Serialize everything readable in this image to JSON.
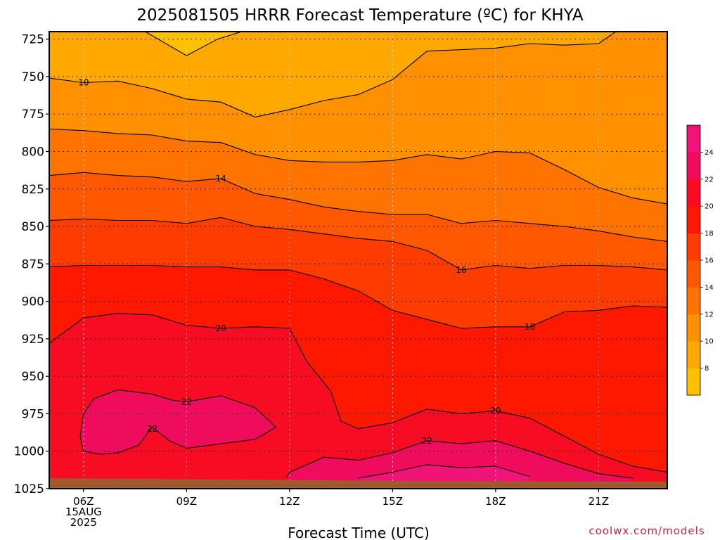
{
  "title": "2025081505 HRRR Forecast Temperature (ºC) for KHYA",
  "xlabel": "Forecast Time (UTC)",
  "credit": "coolwx.com/models",
  "chart_data": {
    "type": "contour",
    "title": "2025081505 HRRR Forecast Temperature (ºC) for KHYA",
    "xlabel": "Forecast Time (UTC)",
    "ylabel": "",
    "x_ticks": [
      {
        "hour": 6,
        "label": "06Z",
        "date": "15AUG",
        "year": "2025"
      },
      {
        "hour": 9,
        "label": "09Z"
      },
      {
        "hour": 12,
        "label": "12Z"
      },
      {
        "hour": 15,
        "label": "15Z"
      },
      {
        "hour": 18,
        "label": "18Z"
      },
      {
        "hour": 21,
        "label": "21Z"
      }
    ],
    "xlim": [
      5.0,
      23.0
    ],
    "y_ticks": [
      725,
      750,
      775,
      800,
      825,
      850,
      875,
      900,
      925,
      950,
      975,
      1000,
      1025
    ],
    "ylim": [
      1025,
      720
    ],
    "grid": true,
    "colorbar": {
      "ticks": [
        8,
        10,
        12,
        14,
        16,
        18,
        20,
        22,
        24
      ],
      "levels": [
        6,
        8,
        10,
        12,
        14,
        16,
        18,
        20,
        22,
        24,
        26
      ],
      "colors": [
        "#ffc000",
        "#ffa800",
        "#ff9000",
        "#ff7400",
        "#ff5800",
        "#ff3c00",
        "#ff1800",
        "#f80c24",
        "#f00c5c",
        "#f01478"
      ]
    },
    "ground": {
      "color": "#a05a2c",
      "surface_hpa": 1018
    },
    "contours": [
      {
        "level": 8,
        "label_at": null,
        "points": [
          [
            7.8,
            720
          ],
          [
            9.0,
            736
          ],
          [
            9.9,
            725
          ],
          [
            10.6,
            720
          ]
        ]
      },
      {
        "level": 10,
        "label_at": [
          6.0,
          754
        ],
        "points": [
          [
            5.0,
            751
          ],
          [
            6.0,
            754
          ],
          [
            7.0,
            753
          ],
          [
            8.0,
            758
          ],
          [
            9.0,
            765
          ],
          [
            10.0,
            767
          ],
          [
            11.0,
            777
          ],
          [
            12.0,
            772
          ],
          [
            13.0,
            766
          ],
          [
            14.0,
            762
          ],
          [
            15.0,
            752
          ],
          [
            16.0,
            733
          ],
          [
            17.0,
            732
          ],
          [
            18.0,
            731
          ],
          [
            19.0,
            728
          ],
          [
            20.0,
            729
          ],
          [
            21.0,
            728
          ],
          [
            21.5,
            720
          ]
        ]
      },
      {
        "level": 12,
        "label_at": null,
        "points": [
          [
            5.0,
            785
          ],
          [
            6.0,
            786
          ],
          [
            7.0,
            788
          ],
          [
            8.0,
            789
          ],
          [
            9.0,
            793
          ],
          [
            10.0,
            794
          ],
          [
            11.0,
            802
          ],
          [
            12.0,
            806
          ],
          [
            13.0,
            807
          ],
          [
            14.0,
            807
          ],
          [
            15.0,
            806
          ],
          [
            16.0,
            802
          ],
          [
            17.0,
            805
          ],
          [
            18.0,
            800
          ],
          [
            19.0,
            801
          ],
          [
            20.0,
            812
          ],
          [
            21.0,
            824
          ],
          [
            22.0,
            831
          ],
          [
            23.0,
            835
          ]
        ]
      },
      {
        "level": 14,
        "label_at": [
          10.0,
          818
        ],
        "points": [
          [
            5.0,
            816
          ],
          [
            6.0,
            814
          ],
          [
            7.0,
            816
          ],
          [
            8.0,
            817
          ],
          [
            9.0,
            820
          ],
          [
            10.0,
            818
          ],
          [
            11.0,
            828
          ],
          [
            12.0,
            832
          ],
          [
            13.0,
            837
          ],
          [
            14.0,
            840
          ],
          [
            15.0,
            842
          ],
          [
            16.0,
            842
          ],
          [
            17.0,
            848
          ],
          [
            18.0,
            846
          ],
          [
            19.0,
            848
          ],
          [
            20.0,
            850
          ],
          [
            21.0,
            853
          ],
          [
            22.0,
            857
          ],
          [
            23.0,
            860
          ]
        ]
      },
      {
        "level": 16,
        "label_at": [
          17.0,
          879
        ],
        "points": [
          [
            5.0,
            846
          ],
          [
            6.0,
            845
          ],
          [
            7.0,
            846
          ],
          [
            8.0,
            846
          ],
          [
            9.0,
            848
          ],
          [
            10.0,
            844
          ],
          [
            11.0,
            850
          ],
          [
            12.0,
            852
          ],
          [
            13.0,
            855
          ],
          [
            14.0,
            858
          ],
          [
            15.0,
            860
          ],
          [
            16.0,
            866
          ],
          [
            17.0,
            879
          ],
          [
            18.0,
            876
          ],
          [
            19.0,
            878
          ],
          [
            20.0,
            876
          ],
          [
            21.0,
            876
          ],
          [
            22.0,
            877
          ],
          [
            23.0,
            879
          ]
        ]
      },
      {
        "level": 18,
        "label_at": [
          19.0,
          917
        ],
        "points": [
          [
            5.0,
            877
          ],
          [
            6.0,
            876
          ],
          [
            7.0,
            876
          ],
          [
            8.0,
            876
          ],
          [
            9.0,
            877
          ],
          [
            10.0,
            877
          ],
          [
            11.0,
            879
          ],
          [
            12.0,
            879
          ],
          [
            13.0,
            885
          ],
          [
            14.0,
            893
          ],
          [
            15.0,
            906
          ],
          [
            16.0,
            912
          ],
          [
            17.0,
            918
          ],
          [
            18.0,
            917
          ],
          [
            19.0,
            917
          ],
          [
            20.0,
            907
          ],
          [
            21.0,
            906
          ],
          [
            22.0,
            903
          ],
          [
            23.0,
            904
          ]
        ]
      },
      {
        "level": 20,
        "label_at": [
          10.0,
          918
        ],
        "points": [
          [
            5.0,
            928
          ],
          [
            6.0,
            911
          ],
          [
            7.0,
            908
          ],
          [
            8.0,
            909
          ],
          [
            9.0,
            916
          ],
          [
            10.0,
            918
          ],
          [
            11.0,
            917
          ],
          [
            12.0,
            918
          ],
          [
            12.5,
            940
          ],
          [
            13.2,
            960
          ],
          [
            13.5,
            980
          ],
          [
            14.0,
            985
          ],
          [
            15.0,
            981
          ],
          [
            16.0,
            972
          ],
          [
            17.0,
            975
          ],
          [
            18.0,
            973
          ],
          [
            19.0,
            978
          ],
          [
            20.0,
            990
          ],
          [
            21.0,
            1002
          ],
          [
            22.0,
            1010
          ],
          [
            23.0,
            1014
          ]
        ]
      },
      {
        "level": 22,
        "label_at": [
          9.0,
          967
        ],
        "closed": true,
        "points": [
          [
            6.0,
            975
          ],
          [
            6.3,
            965
          ],
          [
            7.0,
            959
          ],
          [
            8.0,
            962
          ],
          [
            8.6,
            966
          ],
          [
            9.0,
            967
          ],
          [
            10.0,
            963
          ],
          [
            11.0,
            971
          ],
          [
            11.6,
            984
          ],
          [
            11.0,
            992
          ],
          [
            10.0,
            995
          ],
          [
            9.0,
            998
          ],
          [
            8.5,
            993
          ],
          [
            8.0,
            984
          ],
          [
            7.6,
            996
          ],
          [
            7.0,
            1001
          ],
          [
            6.5,
            1002
          ],
          [
            6.0,
            1000
          ],
          [
            5.9,
            990
          ]
        ]
      },
      {
        "level": 22,
        "label_at": [
          16.0,
          993
        ],
        "points": [
          [
            11.9,
            1018
          ],
          [
            12.0,
            1014
          ],
          [
            13.0,
            1004
          ],
          [
            14.0,
            1006
          ],
          [
            15.0,
            1001
          ],
          [
            16.0,
            993
          ],
          [
            17.0,
            995
          ],
          [
            18.0,
            993
          ],
          [
            19.0,
            1000
          ],
          [
            20.0,
            1008
          ],
          [
            21.0,
            1015
          ],
          [
            22.0,
            1018
          ]
        ]
      },
      {
        "level": 24,
        "label_at": null,
        "points": [
          [
            14.0,
            1018
          ],
          [
            15.0,
            1014
          ],
          [
            16.0,
            1009
          ],
          [
            17.0,
            1011
          ],
          [
            18.0,
            1010
          ],
          [
            19.0,
            1017
          ]
        ]
      }
    ],
    "extra_labels": [
      {
        "text": "22",
        "at": [
          8.0,
          985
        ]
      },
      {
        "text": "20",
        "at": [
          18.0,
          973
        ]
      }
    ]
  }
}
